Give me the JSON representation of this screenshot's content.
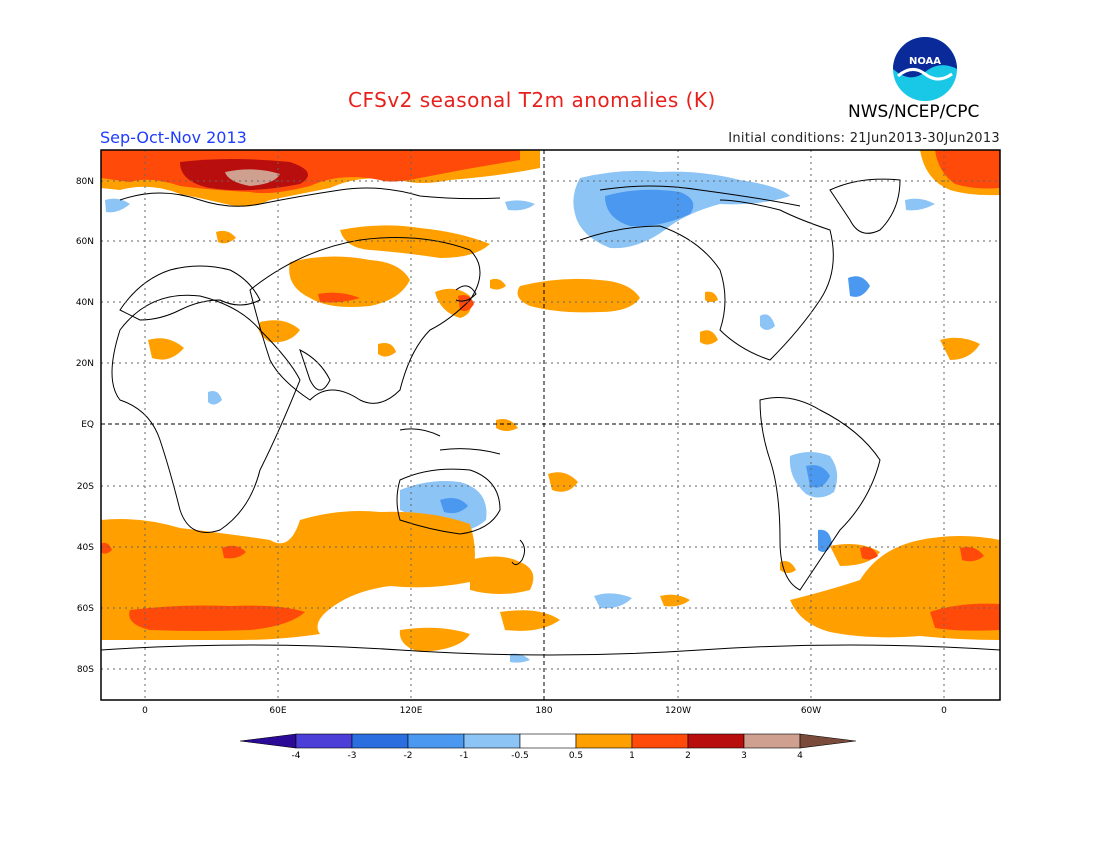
{
  "title": "CFSv2 seasonal T2m anomalies (K)",
  "agency": "NWS/NCEP/CPC",
  "logo_text": "NOAA",
  "season": "Sep-Oct-Nov 2013",
  "initial_conditions": "Initial conditions: 21Jun2013-30Jun2013",
  "lat_labels": [
    "80N",
    "60N",
    "40N",
    "20N",
    "EQ",
    "20S",
    "40S",
    "60S",
    "80S"
  ],
  "lon_labels": [
    "0",
    "60E",
    "120E",
    "180",
    "120W",
    "60W",
    "0"
  ],
  "colorbar": {
    "labels": [
      "-4",
      "-3",
      "-2",
      "-1",
      "-0.5",
      "0.5",
      "1",
      "2",
      "3",
      "4"
    ],
    "colors": [
      "#2a0a96",
      "#4b3fd8",
      "#2a6ee0",
      "#4a98f0",
      "#8cc4f6",
      "#ffffff",
      "#ffa000",
      "#ff4a0a",
      "#b80e0e",
      "#cfa090",
      "#7a4a3a"
    ]
  },
  "colors": {
    "cold": "#4a98f0",
    "cool": "#8cc4f6",
    "warm": "#ffa000",
    "hot": "#ff4a0a",
    "very_hot": "#b80e0e",
    "extreme": "#cfa090"
  }
}
